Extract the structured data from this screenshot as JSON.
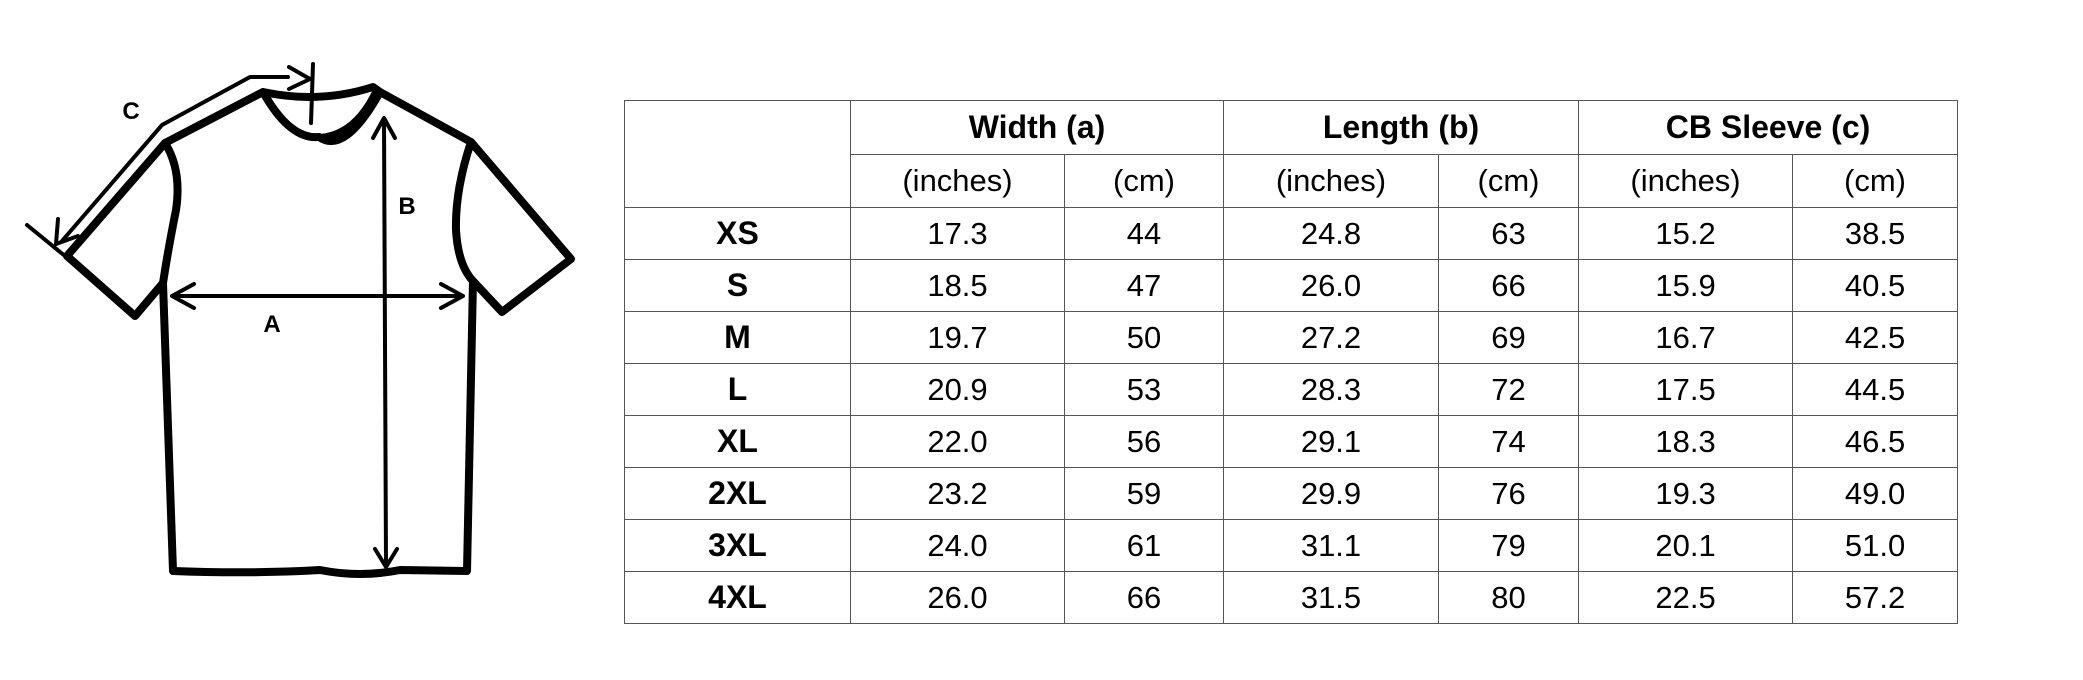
{
  "diagram": {
    "labels": {
      "a": "A",
      "b": "B",
      "c": "C"
    }
  },
  "table": {
    "groups": [
      "Width (a)",
      "Length (b)",
      "CB Sleeve (c)"
    ],
    "units": [
      "(inches)",
      "(cm)",
      "(inches)",
      "(cm)",
      "(inches)",
      "(cm)"
    ],
    "rows": [
      {
        "size": "XS",
        "values": [
          "17.3",
          "44",
          "24.8",
          "63",
          "15.2",
          "38.5"
        ]
      },
      {
        "size": "S",
        "values": [
          "18.5",
          "47",
          "26.0",
          "66",
          "15.9",
          "40.5"
        ]
      },
      {
        "size": "M",
        "values": [
          "19.7",
          "50",
          "27.2",
          "69",
          "16.7",
          "42.5"
        ]
      },
      {
        "size": "L",
        "values": [
          "20.9",
          "53",
          "28.3",
          "72",
          "17.5",
          "44.5"
        ]
      },
      {
        "size": "XL",
        "values": [
          "22.0",
          "56",
          "29.1",
          "74",
          "18.3",
          "46.5"
        ]
      },
      {
        "size": "2XL",
        "values": [
          "23.2",
          "59",
          "29.9",
          "76",
          "19.3",
          "49.0"
        ]
      },
      {
        "size": "3XL",
        "values": [
          "24.0",
          "61",
          "31.1",
          "79",
          "20.1",
          "51.0"
        ]
      },
      {
        "size": "4XL",
        "values": [
          "26.0",
          "66",
          "31.5",
          "80",
          "22.5",
          "57.2"
        ]
      }
    ]
  }
}
